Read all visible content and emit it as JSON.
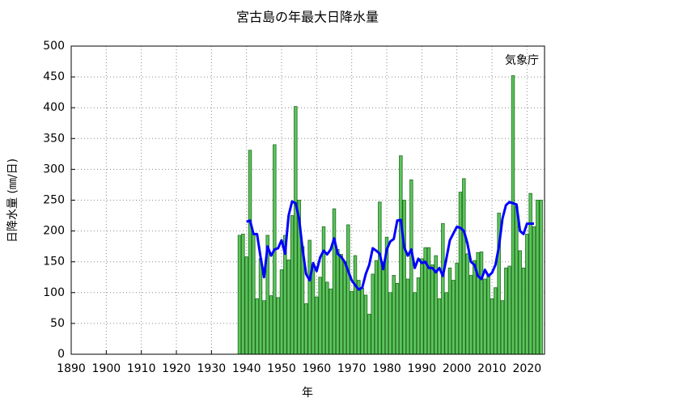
{
  "chart_data": {
    "type": "bar",
    "title": "宮古島の年最大日降水量",
    "xlabel": "年",
    "ylabel": "日降水量 (㎜/日)",
    "annotation": "気象庁",
    "xlim": [
      1890,
      2025
    ],
    "ylim": [
      0,
      500
    ],
    "xticks": [
      1890,
      1900,
      1910,
      1920,
      1930,
      1940,
      1950,
      1960,
      1970,
      1980,
      1990,
      2000,
      2010,
      2020
    ],
    "yticks": [
      0,
      50,
      100,
      150,
      200,
      250,
      300,
      350,
      400,
      450,
      500
    ],
    "grid": true,
    "series": [
      {
        "type": "bar",
        "color": "#5cc45c",
        "x": [
          1938,
          1939,
          1940,
          1941,
          1942,
          1943,
          1944,
          1945,
          1946,
          1947,
          1948,
          1949,
          1950,
          1951,
          1952,
          1953,
          1954,
          1955,
          1956,
          1957,
          1958,
          1959,
          1960,
          1961,
          1962,
          1963,
          1964,
          1965,
          1966,
          1967,
          1968,
          1969,
          1970,
          1971,
          1972,
          1973,
          1974,
          1975,
          1976,
          1977,
          1978,
          1979,
          1980,
          1981,
          1982,
          1983,
          1984,
          1985,
          1986,
          1987,
          1988,
          1989,
          1990,
          1991,
          1992,
          1993,
          1994,
          1995,
          1996,
          1997,
          1998,
          1999,
          2000,
          2001,
          2002,
          2003,
          2004,
          2005,
          2006,
          2007,
          2008,
          2009,
          2010,
          2011,
          2012,
          2013,
          2014,
          2015,
          2016,
          2017,
          2018,
          2019,
          2020,
          2021,
          2022,
          2023,
          2024
        ],
        "values": [
          193,
          195,
          158,
          331,
          195,
          90,
          155,
          87,
          193,
          95,
          340,
          92,
          137,
          193,
          153,
          225,
          402,
          250,
          175,
          82,
          185,
          145,
          93,
          125,
          207,
          117,
          106,
          236,
          170,
          162,
          150,
          210,
          102,
          160,
          120,
          107,
          96,
          65,
          130,
          152,
          247,
          150,
          190,
          100,
          128,
          115,
          322,
          250,
          122,
          283,
          100,
          124,
          155,
          173,
          173,
          145,
          160,
          90,
          212,
          100,
          140,
          120,
          148,
          263,
          285,
          163,
          128,
          152,
          165,
          166,
          122,
          128,
          90,
          108,
          229,
          87,
          140,
          143,
          452,
          240,
          168,
          140,
          195,
          261,
          207,
          250,
          250
        ]
      },
      {
        "type": "line",
        "color": "#0000ff",
        "x": [
          1940,
          1941,
          1942,
          1943,
          1944,
          1945,
          1946,
          1947,
          1948,
          1949,
          1950,
          1951,
          1952,
          1953,
          1954,
          1955,
          1956,
          1957,
          1958,
          1959,
          1960,
          1961,
          1962,
          1963,
          1964,
          1965,
          1966,
          1967,
          1968,
          1969,
          1970,
          1971,
          1972,
          1973,
          1974,
          1975,
          1976,
          1977,
          1978,
          1979,
          1980,
          1981,
          1982,
          1983,
          1984,
          1985,
          1986,
          1987,
          1988,
          1989,
          1990,
          1991,
          1992,
          1993,
          1994,
          1995,
          1996,
          1997,
          1998,
          1999,
          2000,
          2001,
          2002,
          2003,
          2004,
          2005,
          2006,
          2007,
          2008,
          2009,
          2010,
          2011,
          2012,
          2013,
          2014,
          2015,
          2016,
          2017,
          2018,
          2019,
          2020,
          2021,
          2022
        ],
        "values": [
          215,
          217,
          195,
          195,
          158,
          125,
          175,
          160,
          170,
          172,
          185,
          163,
          225,
          248,
          245,
          220,
          170,
          130,
          120,
          148,
          135,
          157,
          168,
          162,
          170,
          188,
          163,
          158,
          150,
          135,
          120,
          112,
          105,
          108,
          130,
          145,
          172,
          168,
          163,
          138,
          170,
          183,
          187,
          217,
          218,
          173,
          160,
          170,
          140,
          155,
          148,
          150,
          140,
          140,
          133,
          140,
          127,
          155,
          185,
          196,
          207,
          205,
          200,
          180,
          150,
          145,
          127,
          122,
          137,
          127,
          132,
          145,
          175,
          220,
          242,
          247,
          245,
          243,
          200,
          195,
          212,
          212,
          212
        ]
      }
    ]
  }
}
